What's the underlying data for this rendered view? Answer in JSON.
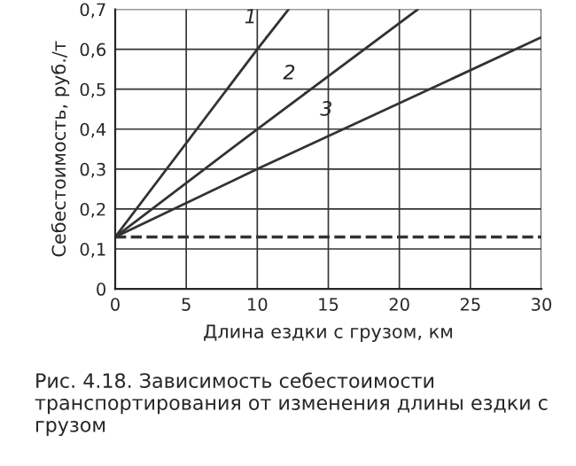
{
  "chart_data": {
    "type": "line",
    "title": "Рис. 4.18. Зависимость себестоимости транспортирования от изменения длины ездки с грузом",
    "xlabel": "Длина ездки с грузом, км",
    "ylabel": "Себестоимость, руб./т",
    "series": [
      {
        "name": "1",
        "color": "#333333",
        "x": [
          0,
          10,
          12.2
        ],
        "values": [
          0.13,
          0.6,
          0.7
        ]
      },
      {
        "name": "2",
        "color": "#333333",
        "x": [
          0,
          10,
          21.3
        ],
        "values": [
          0.13,
          0.4,
          0.7
        ]
      },
      {
        "name": "3",
        "color": "#333333",
        "x": [
          0,
          10,
          30
        ],
        "values": [
          0.13,
          0.3,
          0.63
        ]
      }
    ],
    "ref_lines": [
      {
        "axis": "y",
        "value": 0.13,
        "color": "#333333",
        "line_style": "dashed"
      }
    ],
    "xlim": [
      0,
      30
    ],
    "xticks": [
      0,
      5,
      10,
      15,
      20,
      25,
      30
    ],
    "ylim": [
      0,
      0.7
    ],
    "yticks": [
      {
        "value": 0,
        "label": "0"
      },
      {
        "value": 0.1,
        "label": "0,1"
      },
      {
        "value": 0.2,
        "label": "0,2"
      },
      {
        "value": 0.3,
        "label": "0,3"
      },
      {
        "value": 0.4,
        "label": "0,4"
      },
      {
        "value": 0.5,
        "label": "0,5"
      },
      {
        "value": 0.6,
        "label": "0,6"
      },
      {
        "value": 0.7,
        "label": "0,7"
      }
    ],
    "grid": true,
    "line_style": "solid"
  }
}
